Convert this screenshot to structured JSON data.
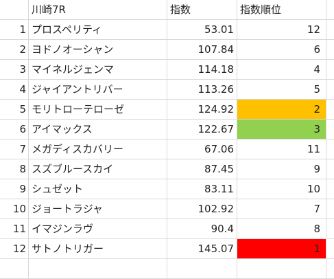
{
  "colors": {
    "rank_1": "#ff0000",
    "rank_2": "#ffc000",
    "rank_3": "#92d050",
    "grid": "#d9d9d9"
  },
  "sheet": {
    "headers": {
      "row_number": "",
      "name": "川崎7R",
      "index": "指数",
      "rank": "指数順位"
    },
    "rows": [
      {
        "num": "1",
        "name": "プロスペリティ",
        "index": "53.01",
        "rank": "12",
        "highlight": ""
      },
      {
        "num": "2",
        "name": "ヨドノオーシャン",
        "index": "107.84",
        "rank": "6",
        "highlight": ""
      },
      {
        "num": "3",
        "name": "マイネルジェンマ",
        "index": "114.18",
        "rank": "4",
        "highlight": ""
      },
      {
        "num": "4",
        "name": "ジャイアントリバー",
        "index": "113.26",
        "rank": "5",
        "highlight": ""
      },
      {
        "num": "5",
        "name": "モリトローテローゼ",
        "index": "124.92",
        "rank": "2",
        "highlight": "rank_2"
      },
      {
        "num": "6",
        "name": "アイマックス",
        "index": "122.67",
        "rank": "3",
        "highlight": "rank_3"
      },
      {
        "num": "7",
        "name": "メガディスカバリー",
        "index": "67.06",
        "rank": "11",
        "highlight": ""
      },
      {
        "num": "8",
        "name": "スズブルースカイ",
        "index": "87.45",
        "rank": "9",
        "highlight": ""
      },
      {
        "num": "9",
        "name": "シュゼット",
        "index": "83.11",
        "rank": "10",
        "highlight": ""
      },
      {
        "num": "10",
        "name": "ジョートラジャ",
        "index": "102.92",
        "rank": "7",
        "highlight": ""
      },
      {
        "num": "11",
        "name": "イマジンラヴ",
        "index": "90.4",
        "rank": "8",
        "highlight": ""
      },
      {
        "num": "12",
        "name": "サトノトリガー",
        "index": "145.07",
        "rank": "1",
        "highlight": "rank_1"
      }
    ]
  }
}
